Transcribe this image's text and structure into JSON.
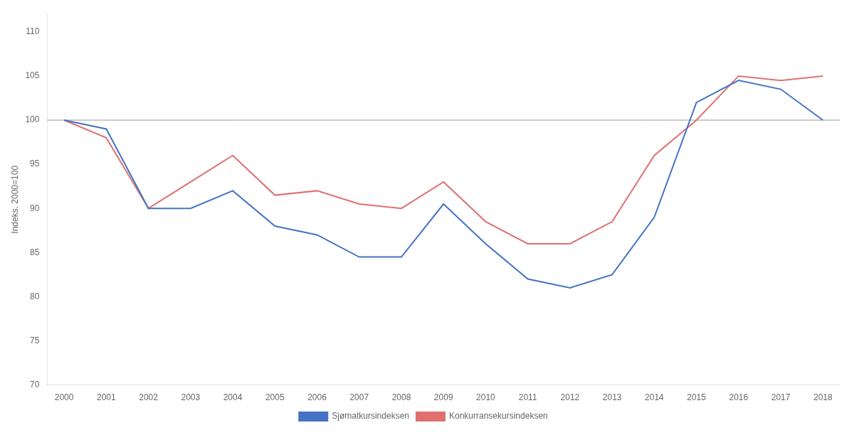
{
  "chart_data": {
    "type": "line",
    "x": [
      2000,
      2001,
      2002,
      2003,
      2004,
      2005,
      2006,
      2007,
      2008,
      2009,
      2010,
      2011,
      2012,
      2013,
      2014,
      2015,
      2016,
      2017,
      2018
    ],
    "series": [
      {
        "name": "Sjømatkursindeksen",
        "color": "#4472C4",
        "values": [
          100,
          99,
          90,
          90,
          92,
          88,
          87,
          84.5,
          84.5,
          90.5,
          86,
          82,
          81,
          82.5,
          89,
          102,
          104.5,
          103.5,
          100
        ]
      },
      {
        "name": "Konkurransekursindeksen",
        "color": "#E07070",
        "values": [
          100,
          98,
          90,
          93,
          96,
          91.5,
          92,
          90.5,
          90,
          93,
          88.5,
          86,
          86,
          88.5,
          96,
          100,
          105,
          104.5,
          105
        ]
      }
    ],
    "ylabel": "Indeks. 2000=100",
    "xlim": [
      1999.6,
      2018.4
    ],
    "xticks": [
      2000,
      2001,
      2002,
      2003,
      2004,
      2005,
      2006,
      2007,
      2008,
      2009,
      2010,
      2011,
      2012,
      2013,
      2014,
      2015,
      2016,
      2017,
      2018
    ],
    "ylim": [
      70,
      112
    ],
    "yticks": [
      70,
      75,
      80,
      85,
      90,
      95,
      100,
      105,
      110
    ],
    "hline": {
      "y": 100,
      "color": "#999999"
    },
    "grid": false,
    "legend": "bottom"
  }
}
